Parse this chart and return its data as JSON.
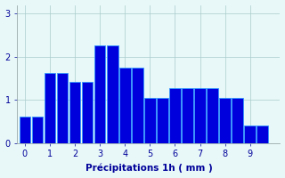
{
  "categories": [
    0,
    0.5,
    1,
    1.5,
    2,
    2.5,
    3,
    3.5,
    4,
    4.5,
    5,
    5.5,
    6,
    6.5,
    7,
    7.5,
    8,
    8.5,
    9,
    9.5
  ],
  "values": [
    0.62,
    0.62,
    1.62,
    1.62,
    1.42,
    1.42,
    2.27,
    2.27,
    1.75,
    1.75,
    1.05,
    1.05,
    1.27,
    1.27,
    1.27,
    1.27,
    1.05,
    1.05,
    0.4,
    0.4
  ],
  "bar_color": "#0000dd",
  "bar_edge_color": "#3399ff",
  "background_color": "#e8f8f8",
  "xlabel": "Précipitations 1h ( mm )",
  "ylim": [
    0,
    3.2
  ],
  "xlim": [
    -0.3,
    10.2
  ],
  "yticks": [
    0,
    1,
    2,
    3
  ],
  "xticks": [
    0,
    1,
    2,
    3,
    4,
    5,
    6,
    7,
    8,
    9
  ],
  "grid_color": "#aacccc",
  "label_color": "#000099",
  "bar_width": 0.45
}
